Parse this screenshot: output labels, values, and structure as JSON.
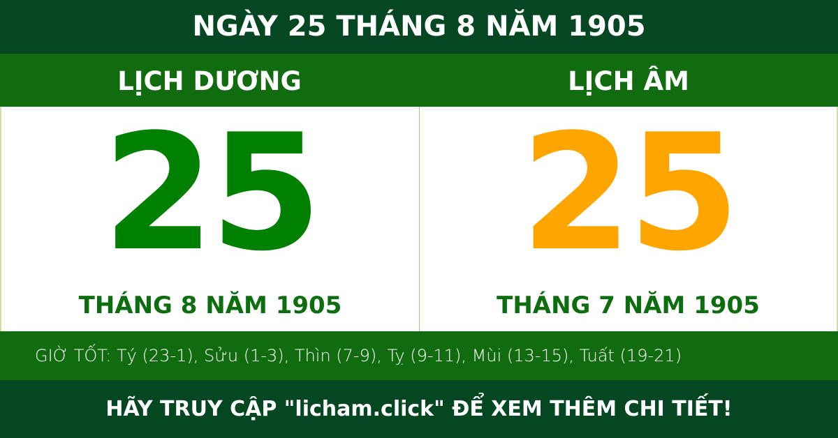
{
  "title": "NGÀY 25 THÁNG 8 NĂM 1905",
  "solar": {
    "label": "LỊCH DƯƠNG",
    "day": "25",
    "month_year": "THÁNG 8 NĂM 1905",
    "color": "#008000"
  },
  "lunar": {
    "label": "LỊCH ÂM",
    "day": "25",
    "month_year": "THÁNG 7 NĂM 1905",
    "color": "#FFA500"
  },
  "good_hours": "GIỜ TỐT: Tý (23-1), Sửu (1-3), Thìn (7-9), Tỵ (9-11), Mùi (13-15), Tuất (19-21)",
  "footer": "HÃY TRUY CẬP \"licham.click\" ĐỂ XEM THÊM CHI TIẾT!"
}
